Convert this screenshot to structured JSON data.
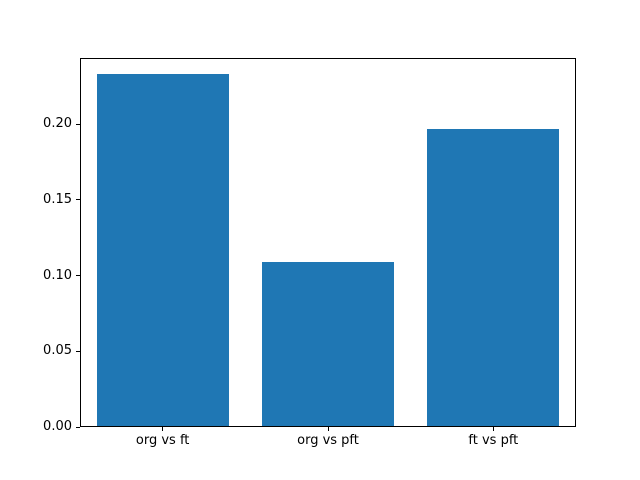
{
  "figure": {
    "background": "#ffffff",
    "title": ""
  },
  "chart_data": {
    "type": "bar",
    "categories": [
      "org vs ft",
      "org vs pft",
      "ft vs pft"
    ],
    "values": [
      0.233,
      0.109,
      0.197
    ],
    "title": "",
    "xlabel": "",
    "ylabel": "",
    "ylim": [
      0,
      0.2437
    ],
    "yticks": [
      0.0,
      0.05,
      0.1,
      0.15,
      0.2
    ],
    "ytick_labels": [
      "0.00",
      "0.05",
      "0.10",
      "0.15",
      "0.20"
    ],
    "bar_color": "#1f77b4",
    "bar_width_fraction": 0.8,
    "axis_color": "#000000",
    "text_color": "#000000",
    "grid": false,
    "legend": null
  }
}
